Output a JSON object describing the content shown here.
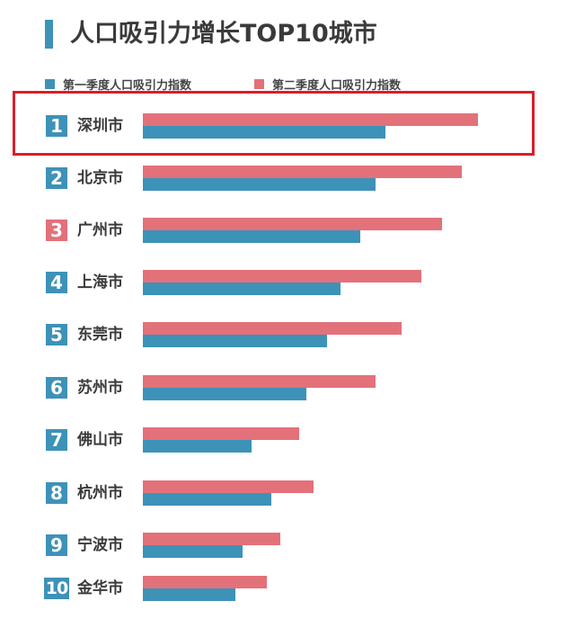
{
  "colors": {
    "q1": "#3d92b8",
    "q2": "#e3717a",
    "highlight": "#d7202a",
    "accent": "#3d92b8"
  },
  "chart_data": {
    "type": "bar",
    "orientation": "horizontal",
    "title": "人口吸引力增长TOP10城市",
    "axis_range": [
      0,
      380
    ],
    "grid": false,
    "legend_placement": "top-left",
    "categories": [
      "深圳市",
      "北京市",
      "广州市",
      "上海市",
      "东莞市",
      "苏州市",
      "佛山市",
      "杭州市",
      "宁波市",
      "金华市"
    ],
    "ranks": [
      "1",
      "2",
      "3",
      "4",
      "5",
      "6",
      "7",
      "8",
      "9",
      "10"
    ],
    "rank_colors": [
      "#3d92b8",
      "#3d92b8",
      "#e3717a",
      "#3d92b8",
      "#3d92b8",
      "#3d92b8",
      "#3d92b8",
      "#3d92b8",
      "#3d92b8",
      "#3d92b8"
    ],
    "highlighted_index": 0,
    "series": [
      {
        "name": "第一季度人口吸引力指数",
        "values": [
          270,
          259,
          242,
          220,
          205,
          182,
          121,
          143,
          111,
          103
        ]
      },
      {
        "name": "第二季度人口吸引力指数",
        "values": [
          373,
          355,
          333,
          310,
          288,
          259,
          174,
          190,
          153,
          138
        ]
      }
    ]
  }
}
